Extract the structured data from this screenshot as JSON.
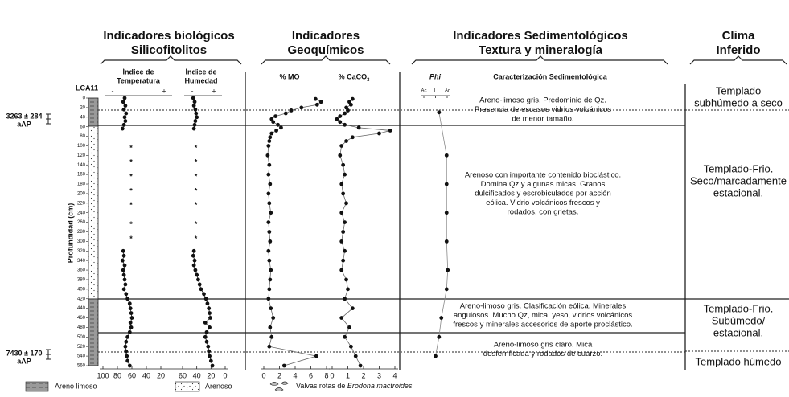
{
  "headers": [
    [
      "Indicadores biológicos",
      "Silicofitolitos"
    ],
    [
      "Indicadores",
      "Geoquímicos"
    ],
    [
      "Indicadores Sedimentológicos",
      "Textura y mineralogía"
    ],
    [
      "Clima",
      "Inferido"
    ]
  ],
  "core": {
    "name": "LCA11",
    "axis_label": "Profundidad (cm)",
    "ylim": [
      0,
      560
    ],
    "yticks": [
      0,
      20,
      40,
      60,
      80,
      100,
      120,
      140,
      160,
      180,
      200,
      220,
      240,
      260,
      280,
      300,
      320,
      340,
      360,
      380,
      400,
      420,
      440,
      460,
      480,
      500,
      520,
      540,
      560
    ],
    "dates": [
      {
        "age": "3263 ± 284",
        "unit": "aAP"
      },
      {
        "age": "7430 ± 170",
        "unit": "aAP"
      }
    ]
  },
  "chart_data": [
    {
      "type": "profile",
      "title": [
        "Índice de",
        "Temperatura"
      ],
      "scale_signs": [
        "-",
        "+"
      ],
      "xlim": [
        100,
        0
      ],
      "xticks": [
        100,
        80,
        60,
        40,
        20
      ],
      "color": "#111",
      "depth": [
        0,
        8,
        16,
        24,
        32,
        40,
        48,
        56,
        64,
        320,
        330,
        340,
        350,
        360,
        370,
        380,
        390,
        400,
        410,
        420,
        430,
        440,
        450,
        460,
        470,
        480,
        490,
        500,
        510,
        520,
        530,
        540,
        550,
        560
      ],
      "values": [
        70,
        72,
        69,
        71,
        68,
        70,
        69,
        71,
        73,
        72,
        71,
        73,
        70,
        72,
        71,
        70,
        69,
        71,
        68,
        66,
        63,
        62,
        61,
        60,
        62,
        61,
        63,
        66,
        68,
        69,
        68,
        67,
        66,
        63
      ],
      "absent_depths": [
        100,
        130,
        160,
        190,
        220,
        260,
        290
      ],
      "absent_marker": "*"
    },
    {
      "type": "profile",
      "title": [
        "Índice de",
        "Humedad"
      ],
      "scale_signs": [
        "-",
        "+"
      ],
      "xlim": [
        60,
        0
      ],
      "xticks": [
        60,
        40,
        20,
        0
      ],
      "color": "#111",
      "depth": [
        0,
        8,
        16,
        24,
        32,
        40,
        48,
        56,
        64,
        320,
        330,
        340,
        350,
        360,
        370,
        380,
        390,
        400,
        410,
        420,
        430,
        440,
        450,
        460,
        470,
        480,
        490,
        500,
        510,
        520,
        530,
        540,
        550,
        560
      ],
      "values": [
        45,
        43,
        44,
        42,
        41,
        40,
        42,
        43,
        44,
        44,
        45,
        43,
        44,
        42,
        40,
        38,
        36,
        34,
        30,
        27,
        25,
        23,
        22,
        21,
        28,
        22,
        26,
        28,
        26,
        24,
        23,
        22,
        20,
        18
      ],
      "absent_depths": [
        100,
        130,
        160,
        190,
        220,
        260,
        290
      ],
      "absent_marker": "*"
    },
    {
      "type": "profile",
      "title": [
        "% MO"
      ],
      "xlim": [
        0,
        8
      ],
      "xticks": [
        0,
        2,
        4,
        6,
        8
      ],
      "color": "#666",
      "depth": [
        2,
        8,
        14,
        20,
        26,
        32,
        38,
        44,
        50,
        56,
        62,
        68,
        74,
        82,
        90,
        100,
        120,
        140,
        160,
        180,
        200,
        220,
        240,
        260,
        280,
        300,
        320,
        340,
        360,
        380,
        400,
        420,
        440,
        460,
        480,
        500,
        520,
        540,
        560
      ],
      "values": [
        6.6,
        7.3,
        6.8,
        4.8,
        3.5,
        2.8,
        1.5,
        1.0,
        1.2,
        1.8,
        2.2,
        1.6,
        1.0,
        0.8,
        0.7,
        0.6,
        0.5,
        0.7,
        0.6,
        0.8,
        0.6,
        0.7,
        0.9,
        0.6,
        0.7,
        0.8,
        0.6,
        0.7,
        0.9,
        0.8,
        0.7,
        0.6,
        0.9,
        1.2,
        0.8,
        1.0,
        0.7,
        6.7,
        2.6
      ]
    },
    {
      "type": "profile",
      "title": [
        "% CaCO"
      ],
      "title_sub": "3",
      "xlim": [
        0,
        4
      ],
      "xticks": [
        0,
        1,
        2,
        3,
        4
      ],
      "color": "#666",
      "depth": [
        2,
        8,
        14,
        20,
        26,
        32,
        38,
        44,
        50,
        56,
        62,
        68,
        74,
        82,
        90,
        100,
        120,
        140,
        160,
        180,
        200,
        220,
        240,
        260,
        280,
        300,
        320,
        340,
        360,
        380,
        400,
        420,
        440,
        460,
        480,
        500,
        520,
        540,
        560
      ],
      "values": [
        1.3,
        1.1,
        1.2,
        0.9,
        1.0,
        0.8,
        0.5,
        0.3,
        0.5,
        0.8,
        1.7,
        3.7,
        3.0,
        1.3,
        0.9,
        0.6,
        0.5,
        0.7,
        0.8,
        0.6,
        0.7,
        0.9,
        0.6,
        0.8,
        0.7,
        0.6,
        0.8,
        0.7,
        0.6,
        0.9,
        1.0,
        0.8,
        1.3,
        0.6,
        1.1,
        0.8,
        1.2,
        1.5,
        1.8
      ]
    },
    {
      "type": "profile",
      "title": [
        "Phi"
      ],
      "axis_top": true,
      "xlim": [
        0,
        2
      ],
      "xticks": [
        {
          "value": 0,
          "label": "Ac"
        },
        {
          "value": 1,
          "label": "L"
        },
        {
          "value": 2,
          "label": "Ar"
        }
      ],
      "color": "#888",
      "depth": [
        30,
        120,
        180,
        240,
        300,
        360,
        400,
        460,
        500,
        540
      ],
      "values": [
        1.3,
        1.95,
        1.95,
        1.95,
        1.95,
        2.05,
        1.95,
        1.5,
        1.3,
        1.0
      ]
    }
  ],
  "description": {
    "title": "Caracterización Sedimentológica",
    "zones": [
      [
        "Areno-limoso gris. Predominio de Qz.",
        "Presencia de escasos vidrios volcánicos",
        "de menor tamaño."
      ],
      [
        "Arenoso con importante contenido bioclástico.",
        "Domina Qz y algunas micas. Granos",
        "dulcificados  y escrobiculados por acción",
        "eólica. Vidrio  volcánicos frescos y",
        "rodados, con grietas."
      ],
      [
        "Areno-limoso gris. Clasificación eólica. Minerales",
        "angulosos. Mucho Qz, mica, yeso, vidrios volcánicos",
        "frescos y minerales accesorios de aporte proclástico."
      ],
      [
        "Areno-limoso gris claro. Mica",
        "desferrificada y rodados de cuarzo."
      ]
    ]
  },
  "clima": [
    [
      "Templado",
      "subhúmedo a seco"
    ],
    [
      "Templado-Frio.",
      "Seco/marcadamente",
      "estacional."
    ],
    [
      "Templado-Frio.",
      "Subúmedo/",
      "estacional."
    ],
    [
      "Templado húmedo"
    ]
  ],
  "legend": [
    "Areno limoso",
    "Arenoso",
    {
      "text": "Valvas rotas de ",
      "taxon": "Erodona mactroides"
    }
  ]
}
